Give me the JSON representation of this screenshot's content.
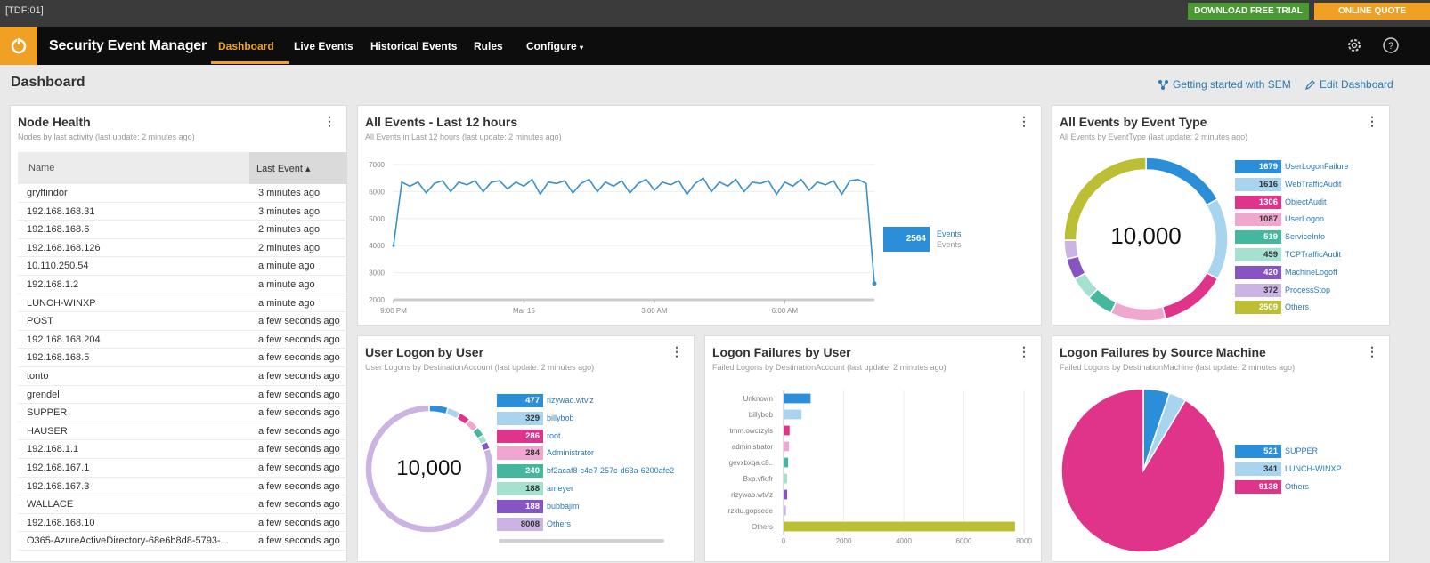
{
  "topbar": {
    "tag": "[TDF:01]",
    "download": "DOWNLOAD FREE TRIAL",
    "quote": "ONLINE QUOTE"
  },
  "nav": {
    "app_name": "Security Event Manager",
    "items": [
      "Dashboard",
      "Live Events",
      "Historical Events",
      "Rules",
      "Configure"
    ],
    "active": "Dashboard"
  },
  "page": {
    "title": "Dashboard",
    "getting_started": "Getting started with SEM",
    "edit": "Edit Dashboard"
  },
  "colors": {
    "accent": "#f0a022",
    "blue": "#2b8ed8",
    "lightblue": "#a8d4ef",
    "magenta": "#e0338a",
    "pink": "#efa6cf",
    "teal": "#45b79e",
    "lightteal": "#a6e0d1",
    "purple": "#8754c4",
    "lavender": "#cbb4e3",
    "olive": "#bcbf34",
    "lightgray": "#d0d0d0"
  },
  "node_health": {
    "title": "Node Health",
    "subtitle": "Nodes by last activity (last update: 2 minutes ago)",
    "col_name": "Name",
    "col_last": "Last Event ▴",
    "rows": [
      [
        "gryffindor",
        "3 minutes ago"
      ],
      [
        "192.168.168.31",
        "3 minutes ago"
      ],
      [
        "192.168.168.6",
        "2 minutes ago"
      ],
      [
        "192.168.168.126",
        "2 minutes ago"
      ],
      [
        "10.110.250.54",
        "a minute ago"
      ],
      [
        "192.168.1.2",
        "a minute ago"
      ],
      [
        "LUNCH-WINXP",
        "a minute ago"
      ],
      [
        "POST",
        "a few seconds ago"
      ],
      [
        "192.168.168.204",
        "a few seconds ago"
      ],
      [
        "192.168.168.5",
        "a few seconds ago"
      ],
      [
        "tonto",
        "a few seconds ago"
      ],
      [
        "grendel",
        "a few seconds ago"
      ],
      [
        "SUPPER",
        "a few seconds ago"
      ],
      [
        "HAUSER",
        "a few seconds ago"
      ],
      [
        "192.168.1.1",
        "a few seconds ago"
      ],
      [
        "192.168.167.1",
        "a few seconds ago"
      ],
      [
        "192.168.167.3",
        "a few seconds ago"
      ],
      [
        "WALLACE",
        "a few seconds ago"
      ],
      [
        "192.168.168.10",
        "a few seconds ago"
      ],
      [
        "O365-AzureActiveDirectory-68e6b8d8-5793-...",
        "a few seconds ago"
      ]
    ]
  },
  "all_events": {
    "title": "All Events - Last 12 hours",
    "subtitle": "All Events in Last 12 hours (last update: 2 minutes ago)",
    "legend_value": "2564",
    "legend_name": "Events",
    "legend_name2": "Events"
  },
  "by_type": {
    "title": "All Events by Event Type",
    "subtitle": "All Events by EventType (last update: 2 minutes ago)",
    "center": "10,000"
  },
  "logon_user": {
    "title": "User Logon by User",
    "subtitle": "User Logons by DestinationAccount (last update: 2 minutes ago)",
    "center": "10,000"
  },
  "fail_user": {
    "title": "Logon Failures by User",
    "subtitle": "Failed Logons by DestinationAccount (last update: 2 minutes ago)"
  },
  "fail_machine": {
    "title": "Logon Failures by Source Machine",
    "subtitle": "Failed Logons by DestinationMachine (last update: 2 minutes ago)"
  },
  "chart_data": [
    {
      "type": "line",
      "x": [
        "9:00 PM",
        "",
        "",
        "",
        "",
        "",
        "",
        "",
        "",
        "",
        "",
        "",
        "",
        "",
        "",
        "",
        "Mar 15",
        "",
        "",
        "",
        "",
        "",
        "",
        "",
        "",
        "",
        "",
        "",
        "",
        "",
        "",
        "",
        "3:00 AM",
        "",
        "",
        "",
        "",
        "",
        "",
        "",
        "",
        "",
        "",
        "",
        "",
        "",
        "",
        "",
        "6:00 AM",
        "",
        "",
        "",
        "",
        "",
        "",
        "",
        "",
        "",
        "",
        ""
      ],
      "tick_labels": [
        "9:00 PM",
        "Mar 15",
        "3:00 AM",
        "6:00 AM"
      ],
      "series": [
        {
          "name": "Events",
          "values": [
            4000,
            6350,
            6200,
            6350,
            5950,
            6300,
            6400,
            6000,
            6350,
            6250,
            6400,
            6000,
            6350,
            6400,
            6100,
            6350,
            6200,
            6450,
            5900,
            6350,
            6300,
            6400,
            5950,
            6300,
            6450,
            6000,
            6350,
            6200,
            6400,
            5950,
            6300,
            6450,
            6050,
            6350,
            6250,
            6400,
            5900,
            6300,
            6500,
            6000,
            6350,
            6200,
            6450,
            6000,
            6350,
            6300,
            6400,
            5900,
            6350,
            6200,
            6450,
            6050,
            6350,
            6250,
            6400,
            5900,
            6400,
            6450,
            6300,
            2600
          ]
        }
      ],
      "yticks": [
        2000,
        3000,
        4000,
        5000,
        6000,
        7000
      ],
      "ylim": [
        2000,
        7000
      ]
    },
    {
      "type": "pie",
      "categories": [
        "UserLogonFailure",
        "WebTrafficAudit",
        "ObjectAudit",
        "UserLogon",
        "ServiceInfo",
        "TCPTrafficAudit",
        "MachineLogoff",
        "ProcessStop",
        "Others"
      ],
      "values": [
        1679,
        1616,
        1306,
        1087,
        519,
        459,
        420,
        372,
        2509
      ],
      "labels": [
        "1679",
        "1616",
        "1306",
        "1087",
        "519",
        "459",
        "420",
        "372",
        "2509"
      ],
      "colors": [
        "#2b8ed8",
        "#a8d4ef",
        "#e0338a",
        "#efa6cf",
        "#45b79e",
        "#a6e0d1",
        "#8754c4",
        "#cbb4e3",
        "#bcbf34"
      ]
    },
    {
      "type": "pie",
      "categories": [
        "rizywao.wtv'z",
        "billybob",
        "root",
        "Administrator",
        "bf2acaf8-c4e7-257c-d63a-6200afe2",
        "ameyer",
        "bubbajim",
        "Others"
      ],
      "values": [
        477,
        329,
        286,
        284,
        240,
        188,
        188,
        8008
      ],
      "labels": [
        "477",
        "329",
        "286",
        "284",
        "240",
        "188",
        "188",
        "8008"
      ],
      "colors": [
        "#2b8ed8",
        "#a8d4ef",
        "#e0338a",
        "#efa6cf",
        "#45b79e",
        "#a6e0d1",
        "#8754c4",
        "#cbb4e3"
      ]
    },
    {
      "type": "bar",
      "orientation": "horizontal",
      "categories": [
        "Unknown",
        "billybob",
        "tmm.owcrzyls",
        "administrator",
        "gevxbxqa.c8..",
        "Bxp.vfk.fr",
        "rizywao.wtv'z",
        "rzxtu.gopsede",
        "Others"
      ],
      "values": [
        900,
        600,
        200,
        180,
        150,
        120,
        120,
        80,
        7700
      ],
      "colors": [
        "#2b8ed8",
        "#a8d4ef",
        "#e0338a",
        "#efa6cf",
        "#45b79e",
        "#a6e0d1",
        "#8754c4",
        "#cbb4e3",
        "#bcbf34"
      ],
      "xticks": [
        0,
        2000,
        4000,
        6000,
        8000
      ],
      "xlim": [
        0,
        8000
      ]
    },
    {
      "type": "pie",
      "categories": [
        "SUPPER",
        "LUNCH-WINXP",
        "Others"
      ],
      "values": [
        521,
        341,
        9138
      ],
      "labels": [
        "521",
        "341",
        "9138"
      ],
      "colors": [
        "#2b8ed8",
        "#a8d4ef",
        "#e0338a"
      ]
    }
  ]
}
